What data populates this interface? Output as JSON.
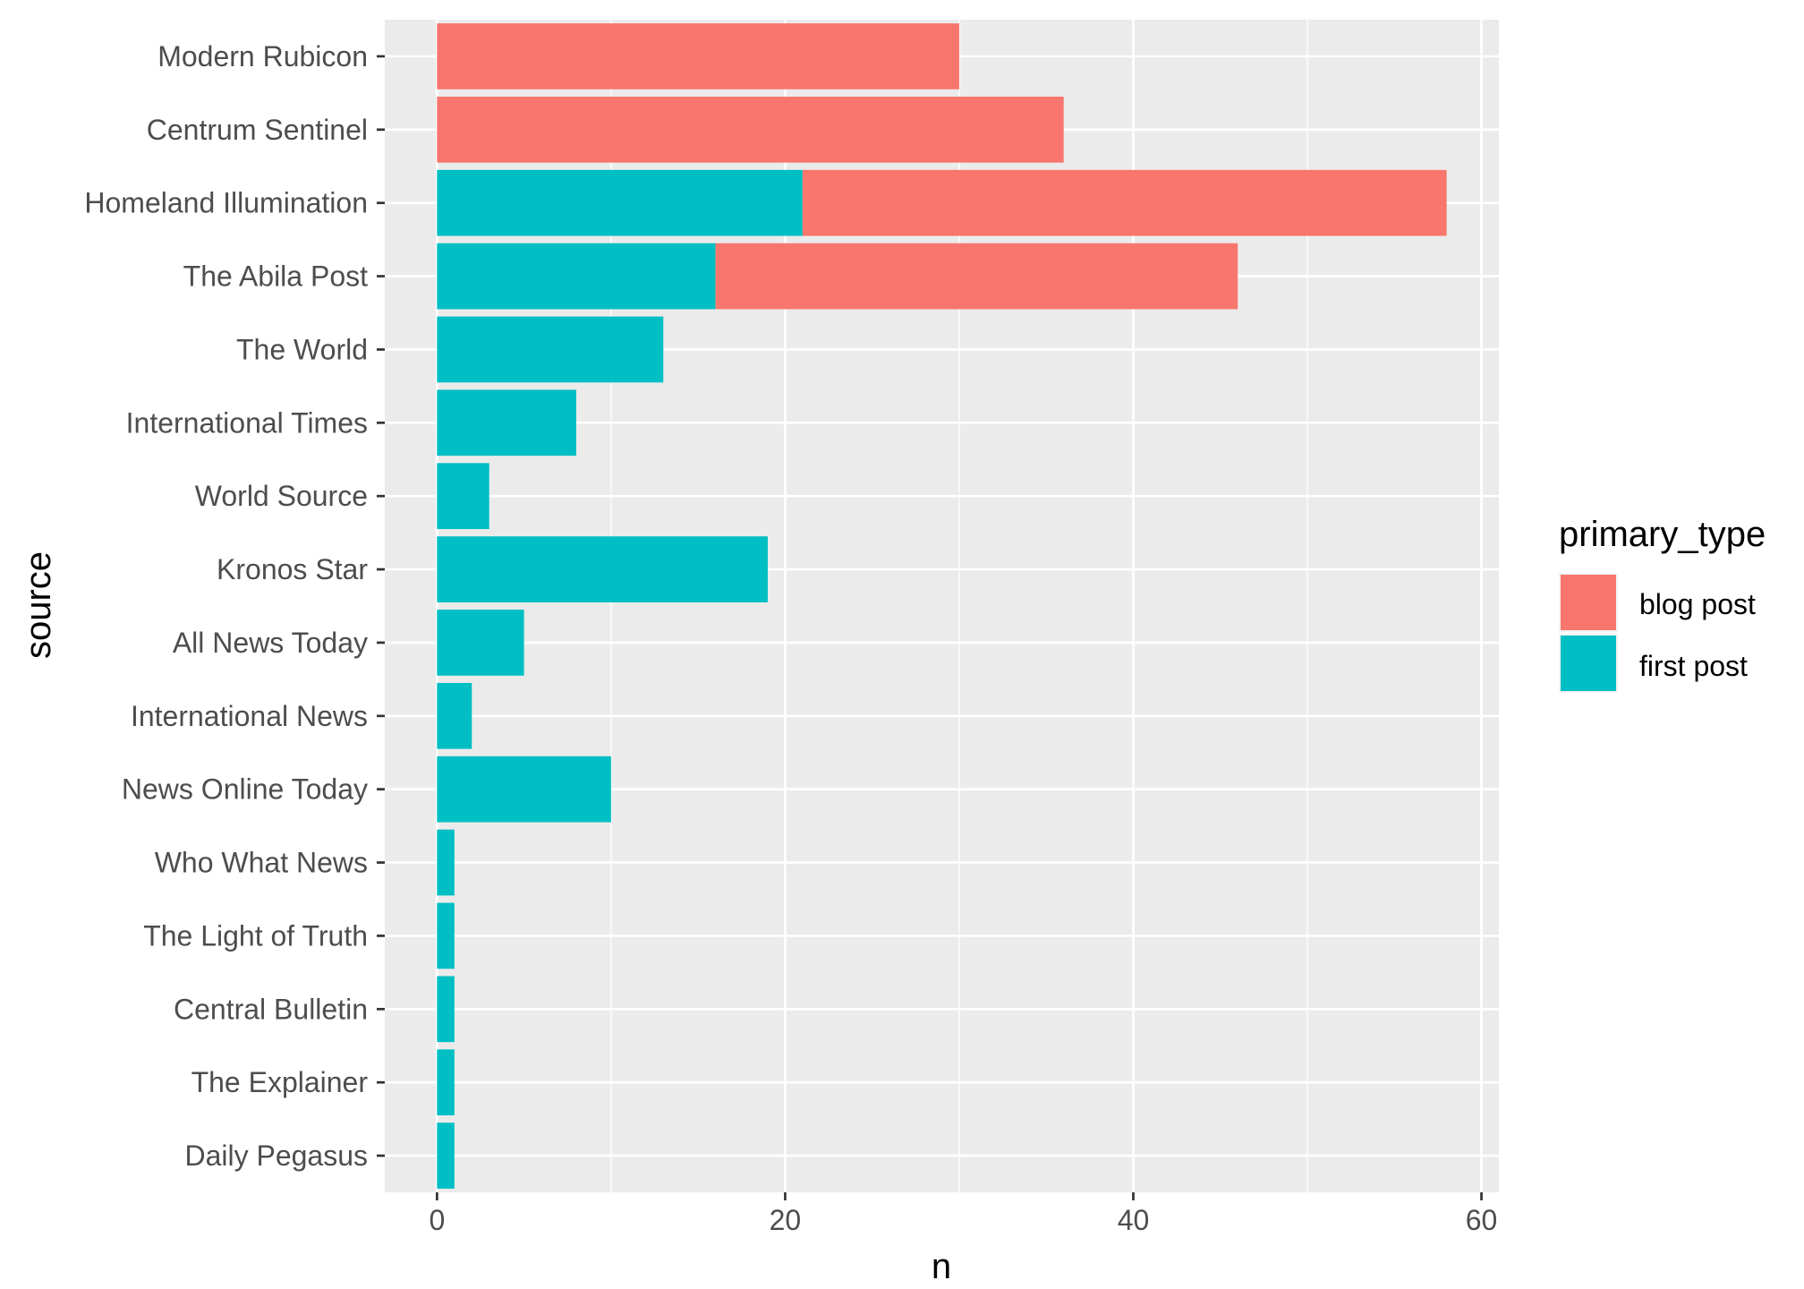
{
  "chart_data": {
    "type": "bar",
    "orientation": "horizontal",
    "stacked": true,
    "xlabel": "n",
    "ylabel": "source",
    "xlim": [
      -3,
      61
    ],
    "x_ticks": [
      0,
      20,
      40,
      60
    ],
    "grid": true,
    "legend": {
      "title": "primary_type",
      "position": "right",
      "entries": [
        {
          "label": "blog post",
          "color": "#F8766D"
        },
        {
          "label": "first post",
          "color": "#00BFC4"
        }
      ]
    },
    "categories": [
      "Modern Rubicon",
      "Centrum Sentinel",
      "Homeland Illumination",
      "The Abila Post",
      "The World",
      "International Times",
      "World Source",
      "Kronos Star",
      "All News Today",
      "International News",
      "News Online Today",
      "Who What News",
      "The Light of Truth",
      "Central Bulletin",
      "The Explainer",
      "Daily Pegasus"
    ],
    "series": [
      {
        "name": "first post",
        "color": "#00BFC4",
        "values": [
          0,
          0,
          21,
          16,
          13,
          8,
          3,
          19,
          5,
          2,
          10,
          1,
          1,
          1,
          1,
          1
        ]
      },
      {
        "name": "blog post",
        "color": "#F8766D",
        "values": [
          30,
          36,
          37,
          30,
          0,
          0,
          0,
          0,
          0,
          0,
          0,
          0,
          0,
          0,
          0,
          0
        ]
      }
    ]
  }
}
